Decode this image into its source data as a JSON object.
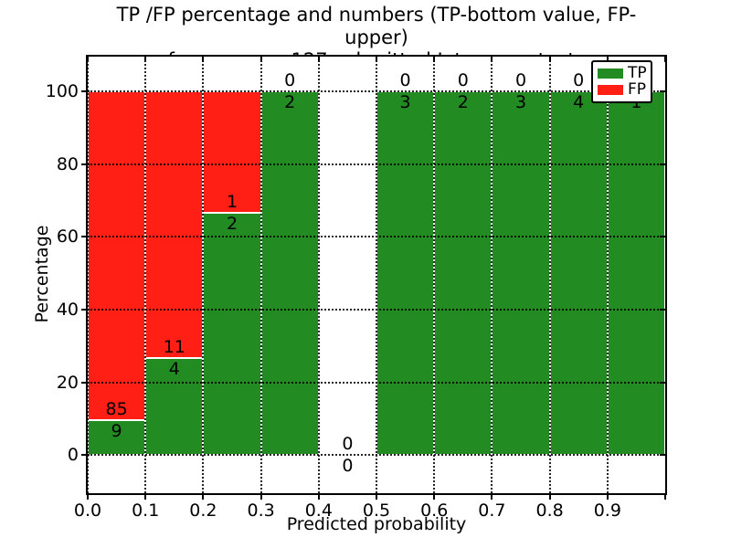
{
  "chart_data": {
    "type": "bar",
    "stacking": "percent",
    "title_line1": "TP /FP percentage and numbers (TP-bottom value, FP-upper)",
    "title_line2": "from among 127 submitted L-type contacts",
    "xlabel": "Predicted probability",
    "ylabel": "Percentage",
    "total_contacts": 127,
    "x_tick_labels": [
      "0.0",
      "0.1",
      "0.2",
      "0.3",
      "0.4",
      "0.5",
      "0.6",
      "0.7",
      "0.8",
      "0.9"
    ],
    "y_tick_labels": [
      "0",
      "20",
      "40",
      "60",
      "80",
      "100"
    ],
    "y_tick_values": [
      0,
      20,
      40,
      60,
      80,
      100
    ],
    "bin_width": 0.1,
    "categories": [
      "0.0-0.1",
      "0.1-0.2",
      "0.2-0.3",
      "0.3-0.4",
      "0.4-0.5",
      "0.5-0.6",
      "0.6-0.7",
      "0.7-0.8",
      "0.8-0.9",
      "0.9-1.0"
    ],
    "series": [
      {
        "name": "TP",
        "color": "#228B22",
        "values": [
          9,
          4,
          2,
          2,
          0,
          3,
          2,
          3,
          4,
          1
        ]
      },
      {
        "name": "FP",
        "color": "#FF1F14",
        "values": [
          85,
          11,
          1,
          0,
          0,
          0,
          0,
          0,
          0,
          0
        ]
      }
    ],
    "value_label_rule": "TP count below segment boundary, FP count above",
    "legend_position": "upper right",
    "grid": "dotted",
    "ylim": [
      -10.5,
      109.5
    ],
    "axis_color": "#000000",
    "background_color": "#ffffff"
  }
}
